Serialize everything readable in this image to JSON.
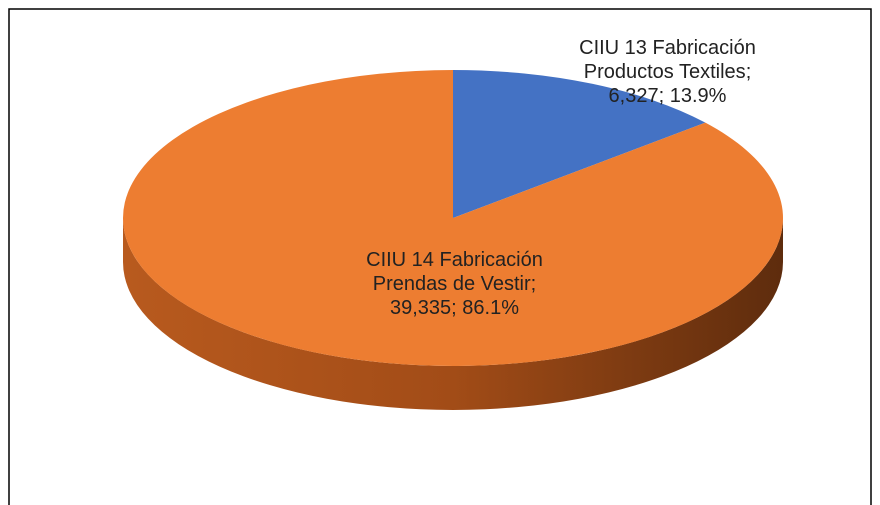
{
  "chart_data": {
    "type": "pie",
    "categories": [
      "CIIU 13 Fabricación Productos Textiles",
      "CIIU 14 Fabricación Prendas de Vestir"
    ],
    "values": [
      6327,
      39335
    ],
    "value_labels": [
      "6,327",
      "39,335"
    ],
    "percent_labels": [
      "13.9%",
      "86.1%"
    ],
    "colors": [
      "#4472c4",
      "#ed7d31"
    ]
  }
}
